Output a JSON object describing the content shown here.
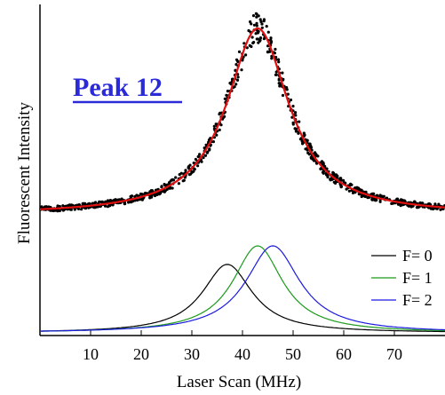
{
  "chart_data": {
    "type": "line",
    "xlabel": "Laser Scan (MHz)",
    "ylabel": "Fluorescent Intensity",
    "annotation": "Peak 12",
    "xlim": [
      0,
      80
    ],
    "xticks": [
      10,
      20,
      30,
      40,
      50,
      60,
      70
    ],
    "grid": false,
    "legend_position": "right",
    "colors": {
      "scatter": "#000000",
      "fit": "#e01010",
      "F0": "#000000",
      "F1": "#1a9a1a",
      "F2": "#1a1ae0",
      "annotation": "#2a2ad8"
    },
    "upper_trace": {
      "baseline": 0.05,
      "center": 43,
      "hwhm": 7.5,
      "peak": 1.0,
      "x_range": [
        0,
        80
      ]
    },
    "components": [
      {
        "name": "F= 0",
        "center": 37,
        "hwhm": 6.0,
        "peak": 0.37
      },
      {
        "name": "F= 1",
        "center": 43,
        "hwhm": 6.0,
        "peak": 0.47
      },
      {
        "name": "F= 2",
        "center": 46,
        "hwhm": 6.5,
        "peak": 0.47
      }
    ]
  }
}
